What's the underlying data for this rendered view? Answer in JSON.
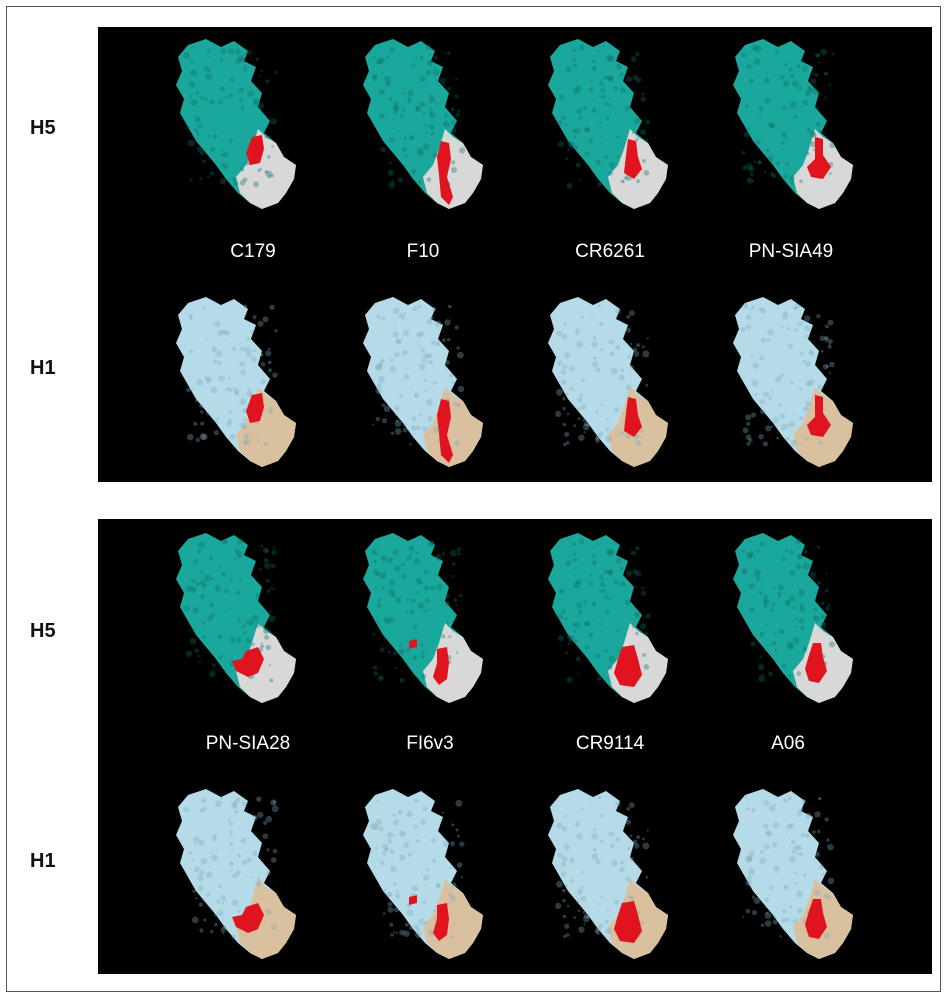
{
  "colors": {
    "h5_head": "#1aa89c",
    "h5_stem": "#d8d8d8",
    "h1_head": "#b5dbe8",
    "h1_stem": "#d9c1a0",
    "epitope": "#e0141e",
    "background": "#000000"
  },
  "panels": [
    {
      "row_labels": {
        "top": "H5",
        "bottom": "H1"
      },
      "antibodies": [
        "C179",
        "F10",
        "CR6261",
        "PN-SIA49"
      ]
    },
    {
      "row_labels": {
        "top": "H5",
        "bottom": "H1"
      },
      "antibodies": [
        "PN-SIA28",
        "FI6v3",
        "CR9114",
        "A06"
      ]
    }
  ]
}
